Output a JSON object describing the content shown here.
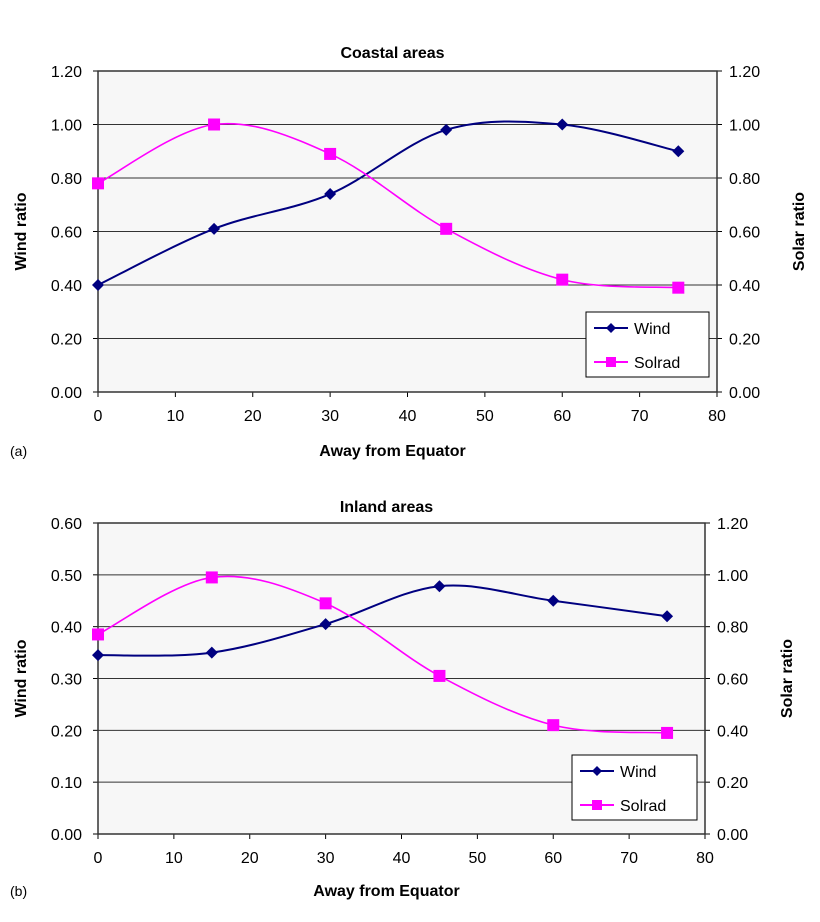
{
  "chart_data": [
    {
      "type": "line",
      "panel_label": "(a)",
      "title": "Coastal areas",
      "xlabel": "Away from Equator",
      "ylabel": "Wind ratio",
      "y2label": "Solar ratio",
      "xlim": [
        0,
        80
      ],
      "ylim": [
        0,
        1.2
      ],
      "y2lim": [
        0,
        1.2
      ],
      "xticks": [
        "0",
        "10",
        "20",
        "30",
        "40",
        "50",
        "60",
        "70",
        "80"
      ],
      "yticks": [
        "0.00",
        "0.20",
        "0.40",
        "0.60",
        "0.80",
        "1.00",
        "1.20"
      ],
      "y2ticks": [
        "0.00",
        "0.20",
        "0.40",
        "0.60",
        "0.80",
        "1.00",
        "1.20"
      ],
      "grid": "horizontal",
      "legend_placement": "bottom-right",
      "x": [
        0,
        15,
        30,
        45,
        60,
        75
      ],
      "series": [
        {
          "name": "Wind",
          "axis": "left",
          "color": "#000080",
          "marker": "diamond",
          "values": [
            0.4,
            0.61,
            0.74,
            0.98,
            1.0,
            0.9
          ]
        },
        {
          "name": "Solrad",
          "axis": "right",
          "color": "#ff00ff",
          "marker": "square",
          "values": [
            0.78,
            1.0,
            0.89,
            0.61,
            0.42,
            0.39
          ]
        }
      ]
    },
    {
      "type": "line",
      "panel_label": "(b)",
      "title": "Inland areas",
      "xlabel": "Away from Equator",
      "ylabel": "Wind ratio",
      "y2label": "Solar ratio",
      "xlim": [
        0,
        80
      ],
      "ylim": [
        0,
        0.6
      ],
      "y2lim": [
        0,
        1.2
      ],
      "xticks": [
        "0",
        "10",
        "20",
        "30",
        "40",
        "50",
        "60",
        "70",
        "80"
      ],
      "yticks": [
        "0.00",
        "0.10",
        "0.20",
        "0.30",
        "0.40",
        "0.50",
        "0.60"
      ],
      "y2ticks": [
        "0.00",
        "0.20",
        "0.40",
        "0.60",
        "0.80",
        "1.00",
        "1.20"
      ],
      "grid": "horizontal",
      "legend_placement": "bottom-right",
      "x": [
        0,
        15,
        30,
        45,
        60,
        75
      ],
      "series": [
        {
          "name": "Wind",
          "axis": "left",
          "color": "#000080",
          "marker": "diamond",
          "values": [
            0.345,
            0.35,
            0.405,
            0.478,
            0.45,
            0.42
          ]
        },
        {
          "name": "Solrad",
          "axis": "right",
          "color": "#ff00ff",
          "marker": "square",
          "values": [
            0.77,
            0.99,
            0.89,
            0.61,
            0.42,
            0.39
          ]
        }
      ]
    }
  ]
}
